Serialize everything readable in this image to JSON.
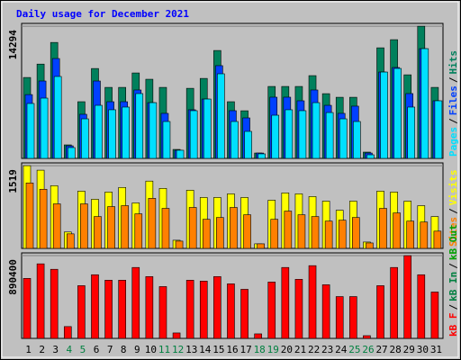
{
  "chart_data": {
    "type": "bar",
    "title": "Daily usage for December 2021",
    "categories": [
      "1",
      "2",
      "3",
      "4",
      "5",
      "6",
      "7",
      "8",
      "9",
      "10",
      "11",
      "12",
      "13",
      "14",
      "15",
      "16",
      "17",
      "18",
      "19",
      "20",
      "21",
      "22",
      "23",
      "24",
      "25",
      "26",
      "27",
      "28",
      "29",
      "30",
      "31"
    ],
    "category_colors": [
      "#000000",
      "#000000",
      "#000000",
      "#008040",
      "#008040",
      "#000000",
      "#000000",
      "#000000",
      "#000000",
      "#000000",
      "#008040",
      "#008040",
      "#000000",
      "#000000",
      "#000000",
      "#000000",
      "#000000",
      "#008040",
      "#008040",
      "#000000",
      "#000000",
      "#000000",
      "#000000",
      "#000000",
      "#008040",
      "#008040",
      "#000000",
      "#000000",
      "#000000",
      "#000000",
      "#000000"
    ],
    "legend_separator": "/",
    "panels": [
      {
        "ylim": [
          0,
          14600
        ],
        "yticks": [
          14294
        ],
        "grid": true,
        "series": [
          {
            "name": "Hits",
            "color": "#00805c",
            "values": [
              8750,
              10200,
              12540,
              1460,
              6130,
              9720,
              7680,
              7680,
              9240,
              8560,
              7680,
              970,
              7580,
              8650,
              11670,
              6130,
              5150,
              580,
              7780,
              7780,
              7780,
              8950,
              7000,
              6610,
              6610,
              680,
              11960,
              12840,
              9040,
              14294,
              7680
            ]
          },
          {
            "name": "Files",
            "color": "#0040ff",
            "values": [
              6900,
              8370,
              10800,
              1360,
              4770,
              8370,
              6130,
              6130,
              7400,
              6030,
              4870,
              880,
              5260,
              6420,
              10030,
              5160,
              4380,
              580,
              6620,
              6620,
              6230,
              7400,
              5740,
              4870,
              5650,
              580,
              9340,
              9830,
              7010,
              11870,
              6230
            ]
          },
          {
            "name": "Pages",
            "color": "#00e0ff",
            "values": [
              5940,
              6520,
              8860,
              1170,
              4280,
              5740,
              5260,
              5550,
              7010,
              6030,
              3990,
              880,
              5160,
              6420,
              9150,
              3990,
              2920,
              490,
              4670,
              5260,
              5160,
              6030,
              4960,
              4280,
              3990,
              390,
              9340,
              9730,
              5550,
              11870,
              6230
            ]
          }
        ],
        "extra_legend": []
      },
      {
        "ylim": [
          0,
          1570
        ],
        "yticks": [
          1519
        ],
        "grid": true,
        "series": [
          {
            "name": "Visits",
            "color": "#ffff00",
            "values": [
              1519,
              1436,
              1152,
              301,
              1052,
              902,
              1035,
              1119,
              835,
              1236,
              1102,
              150,
              1069,
              935,
              935,
              1002,
              935,
              84,
              885,
              1019,
              1002,
              952,
              868,
              701,
              868,
              117,
              1052,
              1035,
              868,
              785,
              585
            ]
          },
          {
            "name": "Sites",
            "color": "#ff8000",
            "values": [
              1202,
              1086,
              818,
              267,
              818,
              585,
              768,
              785,
              635,
              919,
              735,
              134,
              752,
              534,
              568,
              752,
              618,
              84,
              534,
              685,
              618,
              585,
              501,
              518,
              568,
              100,
              735,
              651,
              501,
              484,
              317
            ]
          }
        ],
        "extra_legend": []
      },
      {
        "ylim": [
          0,
          920000
        ],
        "yticks": [
          890400
        ],
        "grid": true,
        "series": [
          {
            "name": "kB F",
            "color": "#ff0000",
            "values": [
              645800,
              802400,
              743700,
              127200,
              567500,
              685000,
              626200,
              626200,
              763200,
              665400,
              557700,
              58700,
              626200,
              616500,
              665400,
              587100,
              528400,
              48900,
              606700,
              763200,
              636000,
              782800,
              577300,
              450100,
              450100,
              29400,
              567500,
              763200,
              890400,
              685000,
              499000
            ]
          }
        ],
        "extra_legend": [
          {
            "name": "kB In",
            "color": "#008040"
          },
          {
            "name": "kB Out",
            "color": "#00a000"
          }
        ]
      }
    ]
  }
}
